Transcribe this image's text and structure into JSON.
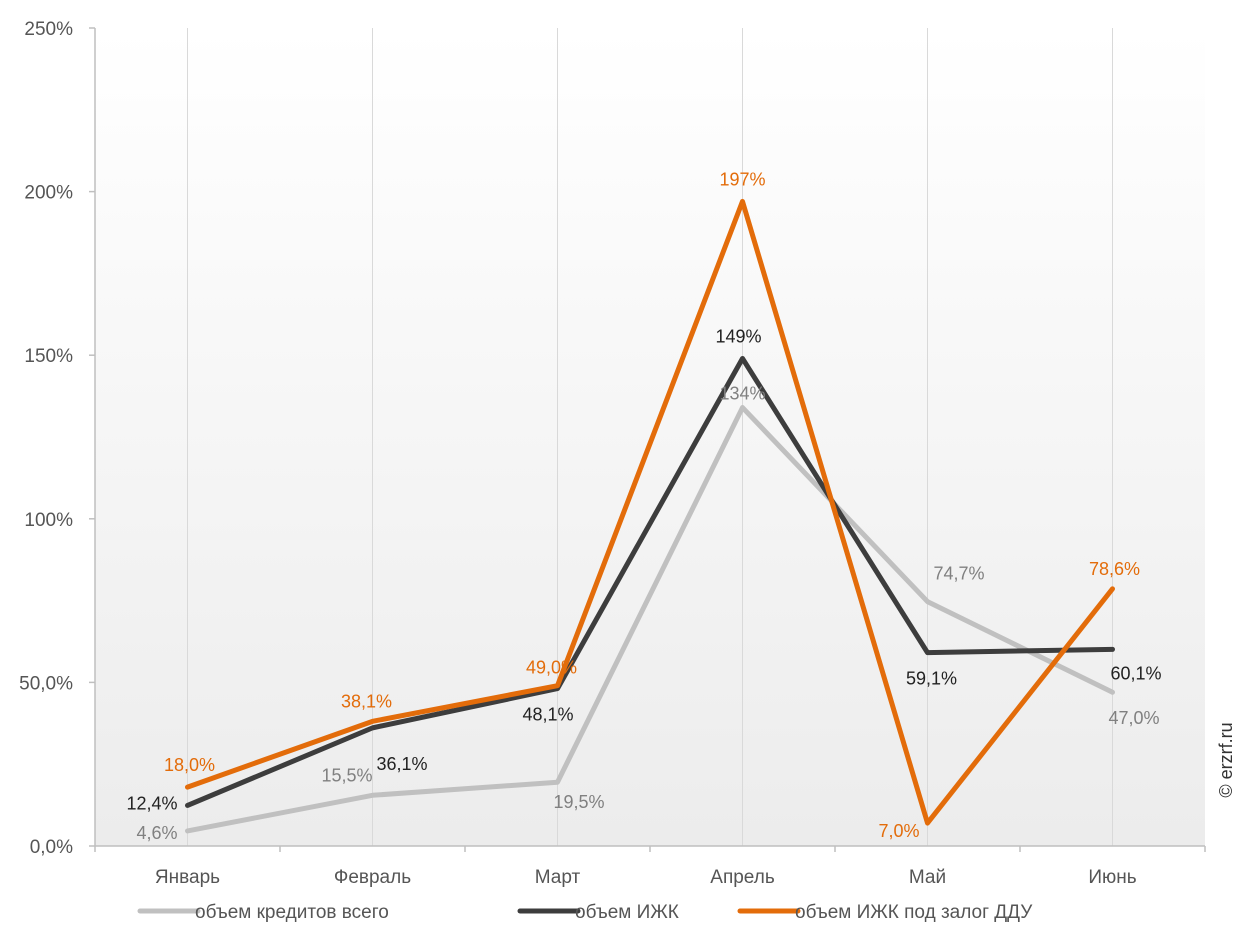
{
  "chart_data": {
    "type": "line",
    "categories": [
      "Январь",
      "Февраль",
      "Март",
      "Апрель",
      "Май",
      "Июнь"
    ],
    "y_ticks": [
      "0,0%",
      "50,0%",
      "100%",
      "150%",
      "200%",
      "250%"
    ],
    "ylim": [
      0,
      250
    ],
    "grid": false,
    "legend_position": "bottom",
    "series": [
      {
        "name": "объем кредитов всего",
        "color": "#c0c0c0",
        "values": [
          4.6,
          15.5,
          19.5,
          134,
          74.7,
          47.0
        ],
        "labels": [
          "4,6%",
          "15,5%",
          "19,5%",
          "134%",
          "74,7%",
          "47,0%"
        ]
      },
      {
        "name": "объем ИЖК",
        "color": "#3d3d3d",
        "values": [
          12.4,
          36.1,
          48.1,
          149,
          59.1,
          60.1
        ],
        "labels": [
          "12,4%",
          "36,1%",
          "48,1%",
          "149%",
          "59,1%",
          "60,1%"
        ]
      },
      {
        "name": "объем ИЖК под залог ДДУ",
        "color": "#e36c0a",
        "values": [
          18.0,
          38.1,
          49.0,
          197,
          7.0,
          78.6
        ],
        "labels": [
          "18,0%",
          "38,1%",
          "49,0%",
          "197%",
          "7,0%",
          "78,6%"
        ]
      }
    ],
    "credit": "© erzrf.ru"
  }
}
